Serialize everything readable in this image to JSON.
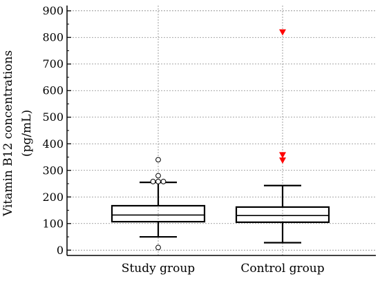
{
  "chart_data": {
    "type": "box",
    "ylabel_lines": [
      "Vitamin B12 concentrations",
      "(pg/mL)"
    ],
    "ylim": [
      -20,
      920
    ],
    "yticks": [
      0,
      100,
      200,
      300,
      400,
      500,
      600,
      700,
      800,
      900
    ],
    "minor_ticks": [
      50,
      150,
      250,
      350,
      450,
      550,
      650,
      750,
      850
    ],
    "grid": true,
    "categories": [
      "Study group",
      "Control group"
    ],
    "boxes": [
      {
        "name": "Study group",
        "whisker_low": 50,
        "q1": 107,
        "median": 132,
        "q3": 167,
        "whisker_high": 255,
        "outliers": [
          {
            "value": 10,
            "marker": "circle",
            "offset": 0
          },
          {
            "value": 258,
            "marker": "circle",
            "offset": -0.25
          },
          {
            "value": 258,
            "marker": "circle",
            "offset": 0
          },
          {
            "value": 258,
            "marker": "circle",
            "offset": 0.25
          },
          {
            "value": 280,
            "marker": "circle",
            "offset": 0
          },
          {
            "value": 340,
            "marker": "circle",
            "offset": 0
          }
        ]
      },
      {
        "name": "Control group",
        "whisker_low": 28,
        "q1": 105,
        "median": 130,
        "q3": 162,
        "whisker_high": 243,
        "outliers": [
          {
            "value": 820,
            "marker": "triangle",
            "offset": 0
          },
          {
            "value": 358,
            "marker": "triangle",
            "offset": 0
          },
          {
            "value": 338,
            "marker": "triangle",
            "offset": 0
          }
        ]
      }
    ],
    "colors": {
      "box": "#000000",
      "grid": "#888888",
      "outlier_triangle": "#ff0000",
      "outlier_circle": "#000000"
    }
  }
}
